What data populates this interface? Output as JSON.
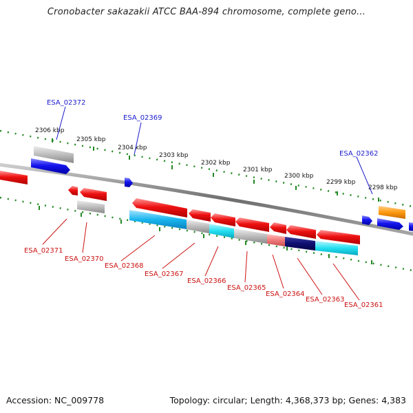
{
  "title": "Cronobacter sakazakii ATCC BAA-894 chromosome, complete geno...",
  "footer": {
    "accession": "Accession: NC_009778",
    "topology": "Topology: circular; Length: 4,368,373 bp; Genes: 4,383"
  },
  "colors": {
    "backbone": "#808080",
    "forward_gene": "#1010ee",
    "reverse_gene": "#ee1111",
    "tick": "#228822",
    "blue_label": "#1a1acc",
    "red_label": "#cc1111"
  },
  "ticks": [
    "2306 kbp",
    "2305 kbp",
    "2304 kbp",
    "2303 kbp",
    "2302 kbp",
    "2301 kbp",
    "2300 kbp",
    "2299 kbp",
    "2298 kbp"
  ],
  "labels_top": [
    "ESA_02372",
    "ESA_02369",
    "ESA_02362"
  ],
  "labels_bottom": [
    "ESA_02371",
    "ESA_02370",
    "ESA_02368",
    "ESA_02367",
    "ESA_02366",
    "ESA_02365",
    "ESA_02364",
    "ESA_02363",
    "ESA_02361"
  ]
}
